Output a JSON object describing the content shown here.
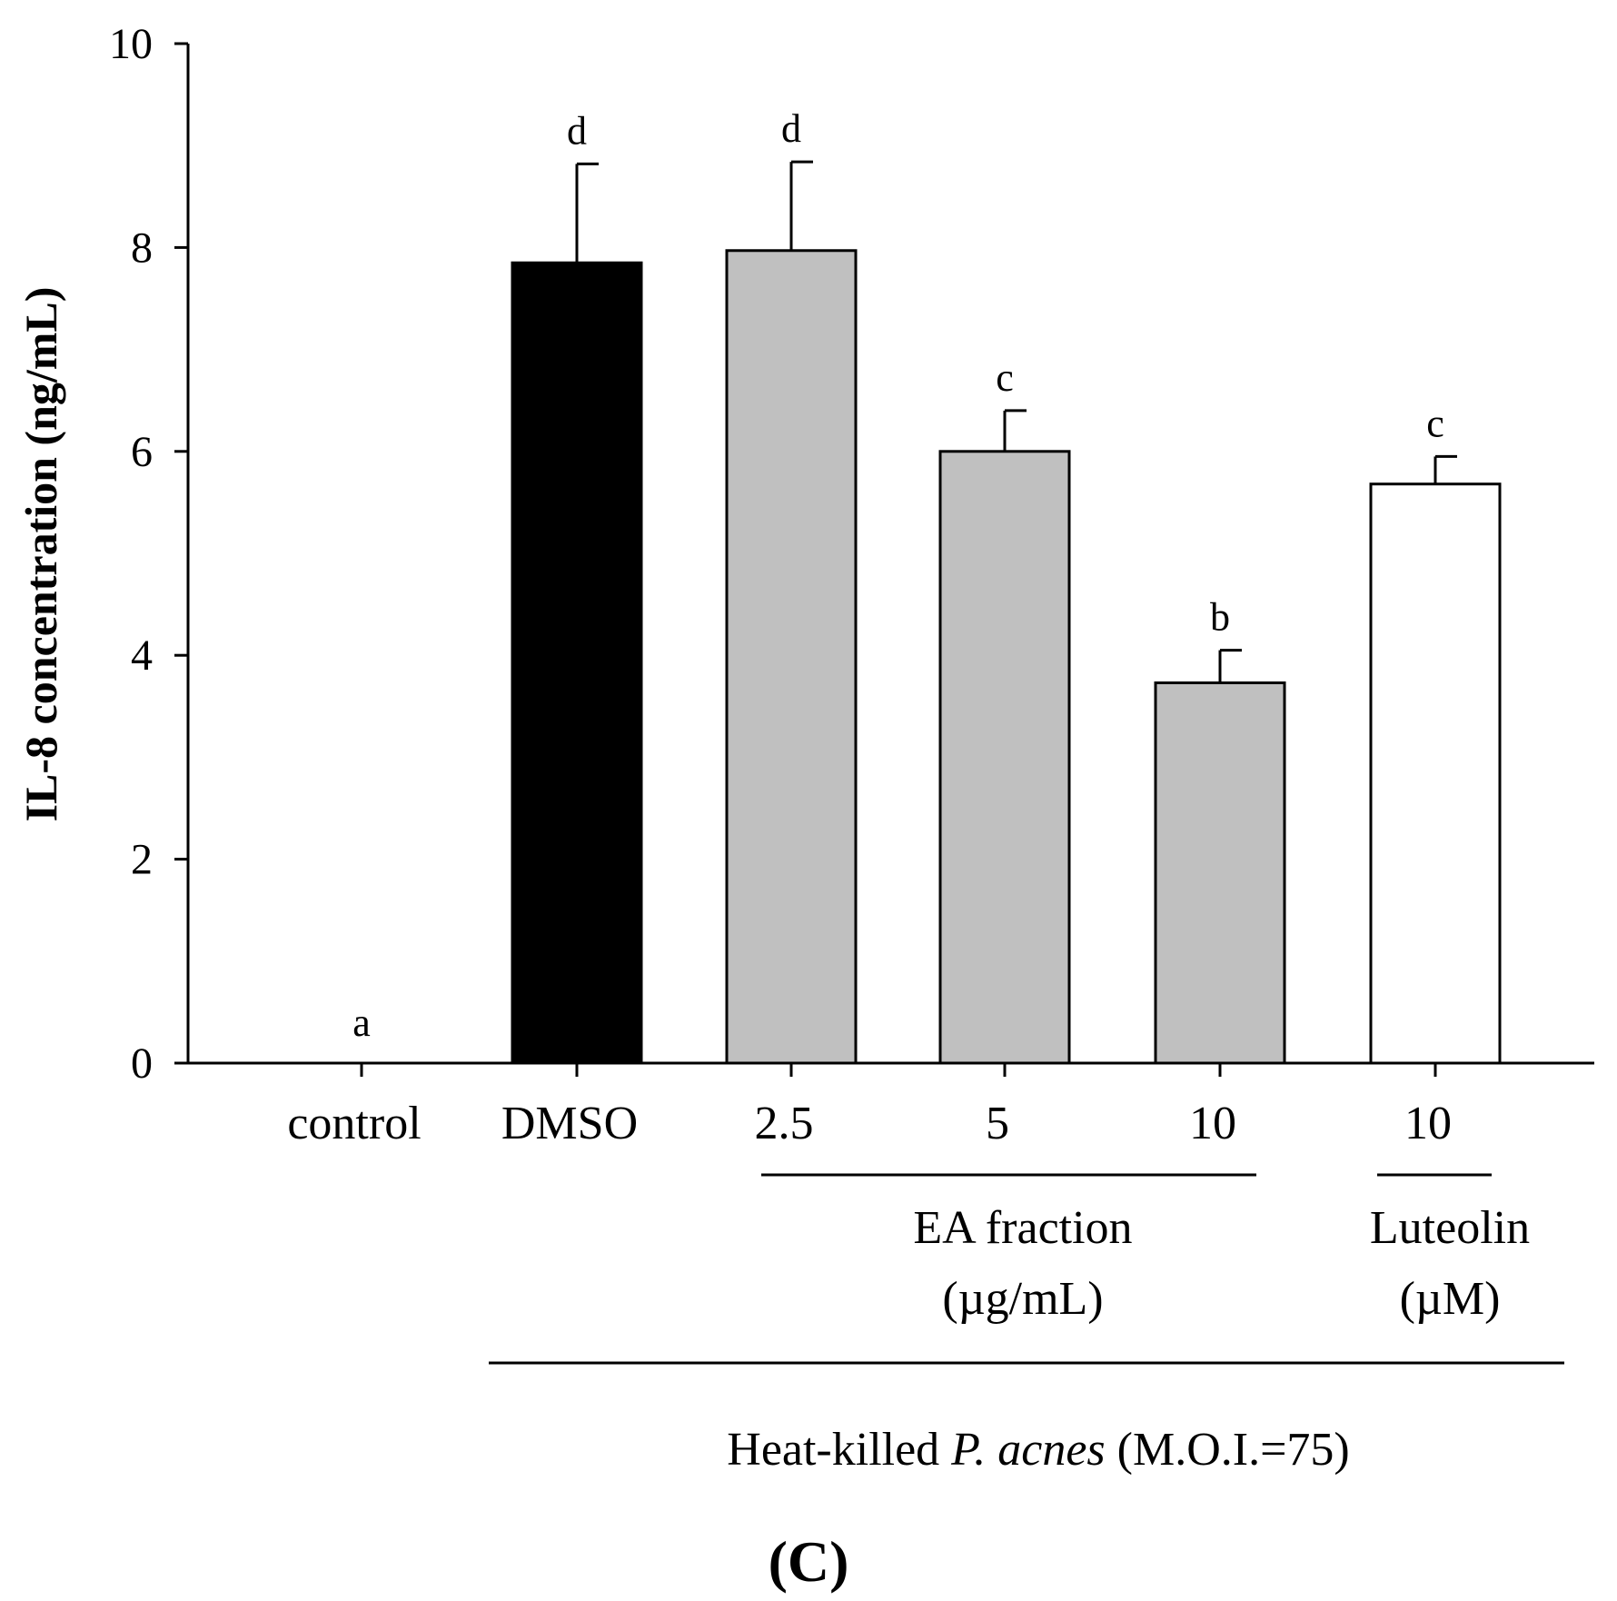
{
  "chart_data": {
    "type": "bar",
    "ylabel": "IL-8 concentration (ng/mL)",
    "ylim": [
      0,
      10
    ],
    "yticks": [
      0,
      2,
      4,
      6,
      8,
      10
    ],
    "categories": [
      "control",
      "DMSO",
      "2.5",
      "5",
      "10",
      "10"
    ],
    "values": [
      0,
      7.85,
      7.97,
      6.0,
      3.73,
      5.68
    ],
    "errors": [
      0,
      0.97,
      0.87,
      0.4,
      0.32,
      0.27
    ],
    "significance": [
      "a",
      "d",
      "d",
      "c",
      "b",
      "c"
    ],
    "bar_colors": [
      "#ffffff",
      "#000000",
      "#c0c0c0",
      "#c0c0c0",
      "#c0c0c0",
      "#ffffff"
    ],
    "groups": [
      {
        "label_lines": [
          "EA fraction",
          "(µg/mL)"
        ],
        "from": 2,
        "to": 4
      },
      {
        "label_lines": [
          "Luteolin",
          "(µM)"
        ],
        "from": 5,
        "to": 5
      }
    ],
    "footer": {
      "prefix": "Heat-killed ",
      "italic": "P. acnes",
      "suffix": " (M.O.I.=75)"
    },
    "panel_label": "(C)"
  }
}
